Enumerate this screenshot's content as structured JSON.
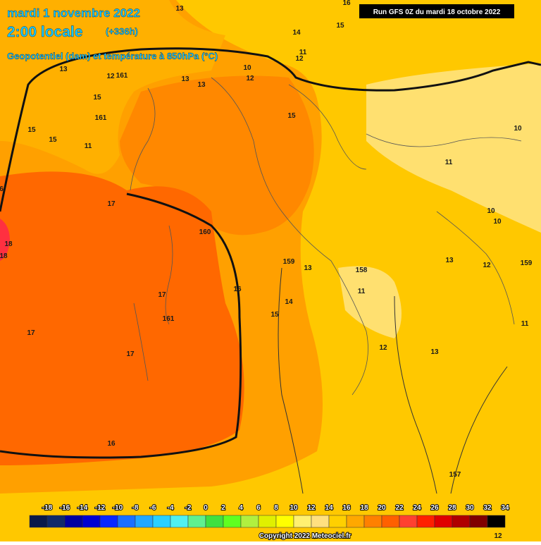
{
  "header": {
    "date": "mardi 1 novembre 2022",
    "time": "2:00 locale",
    "lead": "(+336h)",
    "subtitle": "Geopotentiel (dam) et température à 850hPa (°C)"
  },
  "run": "Run GFS 0Z du mardi 18 octobre 2022",
  "copyright": "Copyright 2022 Meteociel.fr",
  "colorbar": {
    "labels": [
      -18,
      -16,
      -14,
      -12,
      -10,
      -8,
      -6,
      -4,
      -2,
      0,
      2,
      4,
      6,
      8,
      10,
      12,
      14,
      16,
      18,
      20,
      22,
      24,
      26,
      28,
      30,
      32,
      34
    ],
    "colors": [
      "#0a1a4a",
      "#102a6a",
      "#0000a0",
      "#0000d0",
      "#0a28ff",
      "#1a70ff",
      "#22a8ff",
      "#2ad0ff",
      "#50f0f0",
      "#60f090",
      "#40e040",
      "#60ff20",
      "#b0f040",
      "#e0f000",
      "#ffff00",
      "#fff070",
      "#ffe080",
      "#ffd000",
      "#ffa800",
      "#ff8000",
      "#ff6000",
      "#ff4030",
      "#ff2000",
      "#e00000",
      "#b00000",
      "#800000",
      "#000000"
    ]
  },
  "map_labels": [
    "13",
    "16",
    "15",
    "14",
    "11",
    "12",
    "13",
    "12",
    "161",
    "10",
    "12",
    "13",
    "13",
    "15",
    "161",
    "15",
    "15",
    "15",
    "11",
    "10",
    "11",
    "6",
    "17",
    "160",
    "10",
    "10",
    "18",
    "18",
    "159",
    "13",
    "13",
    "12",
    "159",
    "158",
    "11",
    "16",
    "17",
    "14",
    "15",
    "161",
    "11",
    "17",
    "12",
    "13",
    "17",
    "16",
    "157",
    "12"
  ]
}
